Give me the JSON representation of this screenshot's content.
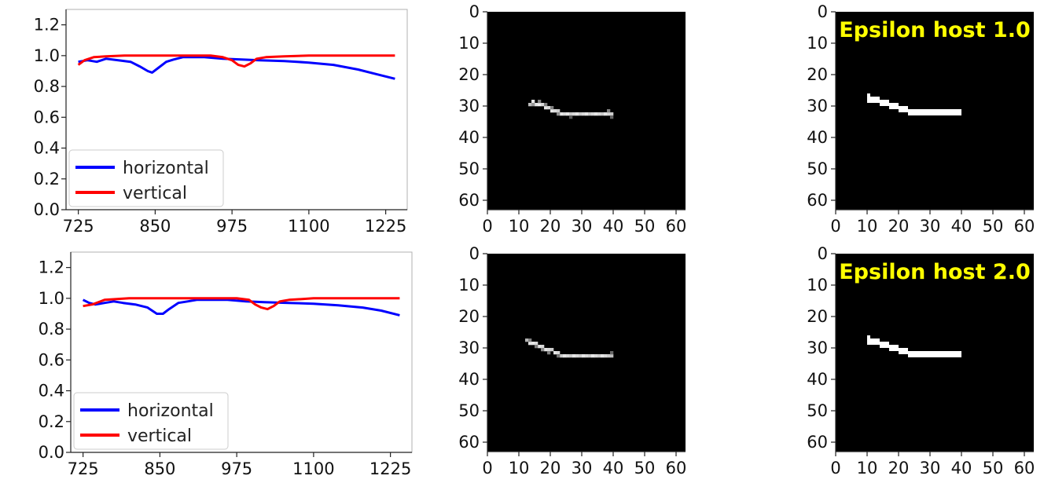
{
  "chart_data": [
    {
      "type": "line",
      "title": "",
      "xlabel": "",
      "ylabel": "",
      "xlim": [
        705,
        1260
      ],
      "ylim": [
        0.0,
        1.3
      ],
      "xticks": [
        725,
        850,
        975,
        1100,
        1225
      ],
      "yticks": [
        0.0,
        0.2,
        0.4,
        0.6,
        0.8,
        1.0,
        1.2
      ],
      "grid": false,
      "legend": "lower-left",
      "series": [
        {
          "name": "horizontal",
          "color": "#0000ff",
          "x": [
            725,
            740,
            755,
            770,
            790,
            810,
            825,
            838,
            845,
            855,
            868,
            880,
            895,
            910,
            930,
            960,
            990,
            1020,
            1060,
            1100,
            1140,
            1180,
            1210,
            1240
          ],
          "y": [
            0.96,
            0.97,
            0.96,
            0.98,
            0.97,
            0.96,
            0.93,
            0.9,
            0.89,
            0.92,
            0.96,
            0.975,
            0.99,
            0.99,
            0.99,
            0.98,
            0.975,
            0.97,
            0.965,
            0.955,
            0.94,
            0.91,
            0.88,
            0.85
          ]
        },
        {
          "name": "vertical",
          "color": "#ff0000",
          "x": [
            725,
            735,
            750,
            770,
            800,
            830,
            860,
            900,
            940,
            960,
            975,
            985,
            995,
            1005,
            1015,
            1030,
            1060,
            1100,
            1150,
            1200,
            1240
          ],
          "y": [
            0.94,
            0.97,
            0.99,
            0.995,
            1.0,
            1.0,
            1.0,
            1.0,
            1.0,
            0.99,
            0.97,
            0.94,
            0.93,
            0.95,
            0.98,
            0.99,
            0.995,
            1.0,
            1.0,
            1.0,
            1.0
          ]
        }
      ]
    },
    {
      "type": "heatmap",
      "title": "",
      "xlim": [
        0,
        63
      ],
      "ylim": [
        63,
        0
      ],
      "xticks": [
        0,
        10,
        20,
        30,
        40,
        50,
        60
      ],
      "yticks": [
        0,
        10,
        20,
        30,
        40,
        50,
        60
      ],
      "background": "#000000",
      "stroke": {
        "style": "soft",
        "pixels": [
          [
            13,
            29,
            0.75
          ],
          [
            14,
            28,
            0.9
          ],
          [
            15,
            29,
            0.9
          ],
          [
            16,
            29,
            0.95
          ],
          [
            17,
            29,
            0.85
          ],
          [
            18,
            30,
            0.9
          ],
          [
            19,
            30,
            0.85
          ],
          [
            20,
            31,
            0.9
          ],
          [
            21,
            31,
            0.85
          ],
          [
            22,
            31,
            0.8
          ],
          [
            23,
            32,
            0.9
          ],
          [
            24,
            32,
            0.85
          ],
          [
            25,
            32,
            0.9
          ],
          [
            26,
            32,
            0.8
          ],
          [
            27,
            32,
            0.85
          ],
          [
            28,
            32,
            0.9
          ],
          [
            29,
            32,
            0.8
          ],
          [
            30,
            32,
            0.85
          ],
          [
            31,
            32,
            0.9
          ],
          [
            32,
            32,
            0.8
          ],
          [
            33,
            32,
            0.85
          ],
          [
            34,
            32,
            0.9
          ],
          [
            35,
            32,
            0.85
          ],
          [
            36,
            32,
            0.8
          ],
          [
            37,
            32,
            0.9
          ],
          [
            38,
            32,
            0.85
          ],
          [
            39,
            32,
            0.8
          ],
          [
            14,
            29,
            0.6
          ],
          [
            16,
            28,
            0.5
          ],
          [
            18,
            29,
            0.5
          ],
          [
            20,
            30,
            0.5
          ],
          [
            22,
            32,
            0.55
          ],
          [
            39,
            33,
            0.4
          ],
          [
            38,
            31,
            0.5
          ],
          [
            26,
            33,
            0.35
          ]
        ]
      }
    },
    {
      "type": "heatmap",
      "title": "Epsilon host 1.0",
      "title_color": "#ffff00",
      "xlim": [
        0,
        63
      ],
      "ylim": [
        63,
        0
      ],
      "xticks": [
        0,
        10,
        20,
        30,
        40,
        50,
        60
      ],
      "yticks": [
        0,
        10,
        20,
        30,
        40,
        50,
        60
      ],
      "background": "#000000",
      "stroke": {
        "style": "binary",
        "segments": [
          [
            10,
            11,
            26,
            29
          ],
          [
            11,
            14,
            27,
            29
          ],
          [
            14,
            17,
            28,
            30
          ],
          [
            17,
            20,
            29,
            31
          ],
          [
            20,
            23,
            30,
            32
          ],
          [
            23,
            25,
            31,
            33
          ],
          [
            25,
            40,
            31,
            33
          ]
        ]
      }
    },
    {
      "type": "line",
      "title": "",
      "xlabel": "",
      "ylabel": "",
      "xlim": [
        705,
        1260
      ],
      "ylim": [
        0.0,
        1.3
      ],
      "xticks": [
        725,
        850,
        975,
        1100,
        1225
      ],
      "yticks": [
        0.0,
        0.2,
        0.4,
        0.6,
        0.8,
        1.0,
        1.2
      ],
      "grid": false,
      "legend": "lower-left",
      "series": [
        {
          "name": "horizontal",
          "color": "#0000ff",
          "x": [
            725,
            735,
            745,
            760,
            775,
            790,
            810,
            830,
            845,
            855,
            865,
            880,
            895,
            910,
            930,
            960,
            990,
            1020,
            1060,
            1100,
            1140,
            1180,
            1210,
            1240
          ],
          "y": [
            0.99,
            0.97,
            0.96,
            0.97,
            0.98,
            0.97,
            0.96,
            0.94,
            0.9,
            0.9,
            0.93,
            0.97,
            0.98,
            0.99,
            0.99,
            0.99,
            0.98,
            0.975,
            0.97,
            0.965,
            0.955,
            0.94,
            0.92,
            0.89
          ]
        },
        {
          "name": "vertical",
          "color": "#ff0000",
          "x": [
            725,
            740,
            760,
            780,
            800,
            830,
            860,
            900,
            940,
            975,
            995,
            1005,
            1015,
            1025,
            1035,
            1045,
            1060,
            1100,
            1150,
            1200,
            1240
          ],
          "y": [
            0.95,
            0.96,
            0.99,
            0.995,
            1.0,
            1.0,
            1.0,
            1.0,
            1.0,
            1.0,
            0.99,
            0.96,
            0.94,
            0.93,
            0.95,
            0.98,
            0.99,
            1.0,
            1.0,
            1.0,
            1.0
          ]
        }
      ]
    },
    {
      "type": "heatmap",
      "title": "",
      "xlim": [
        0,
        63
      ],
      "ylim": [
        63,
        0
      ],
      "xticks": [
        0,
        10,
        20,
        30,
        40,
        50,
        60
      ],
      "yticks": [
        0,
        10,
        20,
        30,
        40,
        50,
        60
      ],
      "background": "#000000",
      "stroke": {
        "style": "soft",
        "pixels": [
          [
            12,
            27,
            0.7
          ],
          [
            13,
            28,
            0.9
          ],
          [
            14,
            28,
            0.9
          ],
          [
            15,
            28,
            0.85
          ],
          [
            16,
            29,
            0.9
          ],
          [
            17,
            29,
            0.85
          ],
          [
            18,
            30,
            0.9
          ],
          [
            19,
            30,
            0.85
          ],
          [
            20,
            30,
            0.8
          ],
          [
            21,
            31,
            0.9
          ],
          [
            22,
            31,
            0.85
          ],
          [
            23,
            32,
            0.8
          ],
          [
            24,
            32,
            0.9
          ],
          [
            25,
            32,
            0.85
          ],
          [
            26,
            32,
            0.8
          ],
          [
            27,
            32,
            0.9
          ],
          [
            28,
            32,
            0.85
          ],
          [
            29,
            32,
            0.8
          ],
          [
            30,
            32,
            0.9
          ],
          [
            31,
            32,
            0.85
          ],
          [
            32,
            32,
            0.8
          ],
          [
            33,
            32,
            0.9
          ],
          [
            34,
            32,
            0.85
          ],
          [
            35,
            32,
            0.8
          ],
          [
            36,
            32,
            0.9
          ],
          [
            37,
            32,
            0.85
          ],
          [
            38,
            32,
            0.8
          ],
          [
            39,
            32,
            0.75
          ],
          [
            13,
            27,
            0.5
          ],
          [
            15,
            29,
            0.5
          ],
          [
            17,
            30,
            0.55
          ],
          [
            19,
            31,
            0.5
          ],
          [
            22,
            32,
            0.45
          ],
          [
            39,
            31,
            0.4
          ]
        ]
      }
    },
    {
      "type": "heatmap",
      "title": "Epsilon host 2.0",
      "title_color": "#ffff00",
      "xlim": [
        0,
        63
      ],
      "ylim": [
        63,
        0
      ],
      "xticks": [
        0,
        10,
        20,
        30,
        40,
        50,
        60
      ],
      "yticks": [
        0,
        10,
        20,
        30,
        40,
        50,
        60
      ],
      "background": "#000000",
      "stroke": {
        "style": "binary",
        "segments": [
          [
            10,
            11,
            26,
            29
          ],
          [
            11,
            14,
            27,
            29
          ],
          [
            14,
            17,
            28,
            30
          ],
          [
            17,
            20,
            29,
            31
          ],
          [
            20,
            23,
            30,
            32
          ],
          [
            23,
            25,
            31,
            33
          ],
          [
            25,
            40,
            31,
            33
          ]
        ]
      }
    }
  ]
}
